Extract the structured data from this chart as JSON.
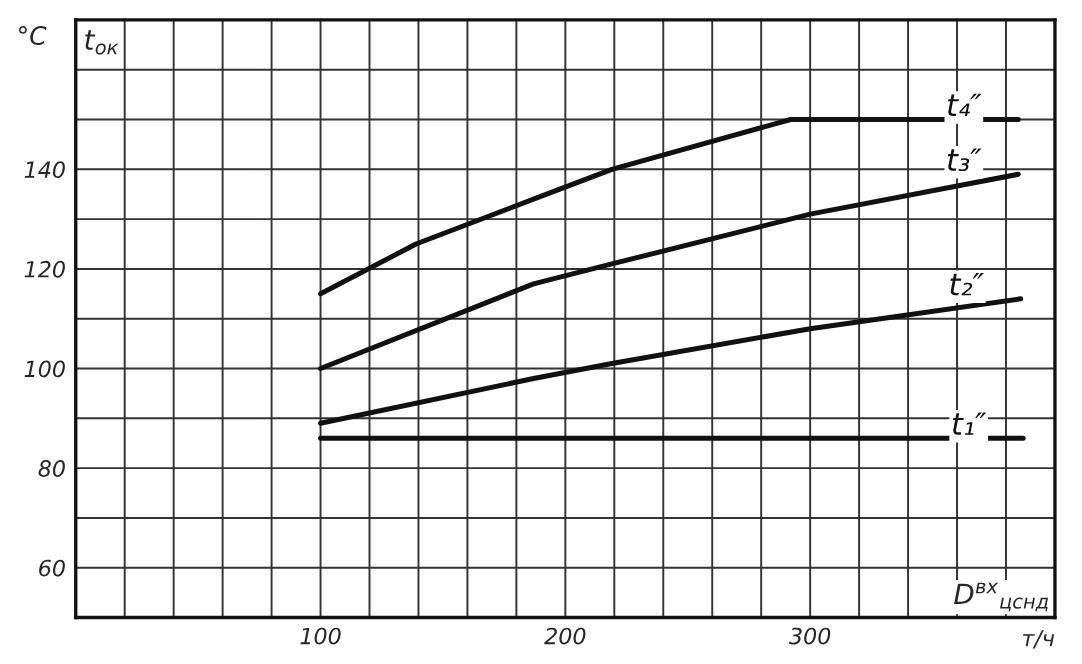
{
  "chart_data": {
    "type": "line",
    "ylabel": "°C",
    "xlabel": "т/ч",
    "annotations": [
      "t$_{ок}$",
      "D$^{вх}$$_{цснд}$"
    ],
    "xlim": [
      0,
      400
    ],
    "ylim": [
      50,
      170
    ],
    "xticks": [
      {
        "value": 0,
        "label": null
      },
      {
        "value": 20,
        "label": null
      },
      {
        "value": 40,
        "label": null
      },
      {
        "value": 60,
        "label": null
      },
      {
        "value": 80,
        "label": null
      },
      100,
      {
        "value": 120,
        "label": null
      },
      {
        "value": 140,
        "label": null
      },
      {
        "value": 160,
        "label": null
      },
      {
        "value": 180,
        "label": null
      },
      200,
      {
        "value": 220,
        "label": null
      },
      {
        "value": 240,
        "label": null
      },
      {
        "value": 260,
        "label": null
      },
      {
        "value": 280,
        "label": null
      },
      300,
      {
        "value": 320,
        "label": null
      },
      {
        "value": 340,
        "label": null
      },
      {
        "value": 360,
        "label": null
      },
      {
        "value": 380,
        "label": null
      },
      {
        "value": 400,
        "label": null
      }
    ],
    "yticks": [
      {
        "value": 50,
        "label": null
      },
      60,
      {
        "value": 70,
        "label": null
      },
      80,
      {
        "value": 90,
        "label": null
      },
      100,
      {
        "value": 110,
        "label": null
      },
      120,
      {
        "value": 130,
        "label": null
      },
      140,
      {
        "value": 150,
        "label": null
      },
      {
        "value": 160,
        "label": null
      },
      {
        "value": 170,
        "label": null
      }
    ],
    "grid": true,
    "line_style": "solid",
    "marker": "none",
    "series": [
      {
        "name": "t₄″",
        "color": "#111111",
        "x": [
          100,
          139,
          187,
          219,
          292,
          385
        ],
        "values": [
          115,
          125,
          134,
          140,
          150,
          150
        ]
      },
      {
        "name": "t₃″",
        "color": "#111111",
        "x": [
          100,
          187,
          219,
          300,
          385
        ],
        "values": [
          100,
          117,
          121,
          131,
          139
        ]
      },
      {
        "name": "t₂″",
        "color": "#111111",
        "x": [
          100,
          187,
          219,
          300,
          386
        ],
        "values": [
          89,
          98,
          101,
          108,
          114
        ]
      },
      {
        "name": "t₁″",
        "color": "#111111",
        "x": [
          100,
          387
        ],
        "values": [
          86,
          86
        ]
      }
    ]
  }
}
